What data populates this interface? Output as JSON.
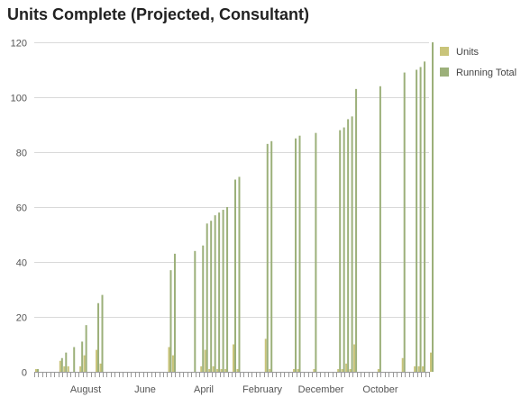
{
  "chart_data": {
    "type": "bar",
    "title": "Units Complete (Projected, Consultant)",
    "xlabel": "",
    "ylabel": "",
    "ylim": [
      0,
      120
    ],
    "y_ticks": [
      0,
      20,
      40,
      60,
      80,
      100,
      120
    ],
    "x_tick_labels": [
      "August",
      "June",
      "April",
      "February",
      "December",
      "October"
    ],
    "grid": true,
    "legend_position": "right",
    "colors": {
      "Units": "#c9c47a",
      "Running Total": "#9cb07a"
    },
    "series": [
      {
        "name": "Units",
        "values": [
          1,
          0,
          0,
          0,
          0,
          0,
          4,
          2,
          2,
          0,
          0,
          2,
          6,
          0,
          0,
          8,
          3,
          0,
          0,
          0,
          0,
          0,
          0,
          0,
          0,
          0,
          0,
          0,
          0,
          0,
          0,
          0,
          0,
          9,
          6,
          0,
          0,
          0,
          0,
          0,
          0,
          2,
          8,
          1,
          2,
          1,
          1,
          1,
          0,
          10,
          1,
          0,
          0,
          0,
          0,
          0,
          0,
          12,
          1,
          0,
          0,
          0,
          0,
          0,
          1,
          1,
          0,
          0,
          0,
          1,
          0,
          0,
          0,
          0,
          0,
          1,
          1,
          3,
          1,
          10,
          0,
          0,
          0,
          0,
          0,
          1,
          0,
          0,
          0,
          0,
          0,
          5,
          0,
          0,
          2,
          2,
          2,
          0,
          7
        ]
      },
      {
        "name": "Running Total",
        "values": [
          1,
          0,
          0,
          0,
          0,
          0,
          5,
          7,
          0,
          9,
          0,
          11,
          17,
          0,
          0,
          25,
          28,
          0,
          0,
          0,
          0,
          0,
          0,
          0,
          0,
          0,
          0,
          0,
          0,
          0,
          0,
          0,
          0,
          37,
          43,
          0,
          0,
          0,
          0,
          44,
          0,
          46,
          54,
          55,
          57,
          58,
          59,
          60,
          0,
          70,
          71,
          0,
          0,
          0,
          0,
          0,
          0,
          83,
          84,
          0,
          0,
          0,
          0,
          0,
          85,
          86,
          0,
          0,
          0,
          87,
          0,
          0,
          0,
          0,
          0,
          88,
          89,
          92,
          93,
          103,
          0,
          0,
          0,
          0,
          0,
          104,
          0,
          0,
          0,
          0,
          0,
          109,
          0,
          0,
          110,
          111,
          113,
          0,
          120
        ]
      }
    ]
  }
}
